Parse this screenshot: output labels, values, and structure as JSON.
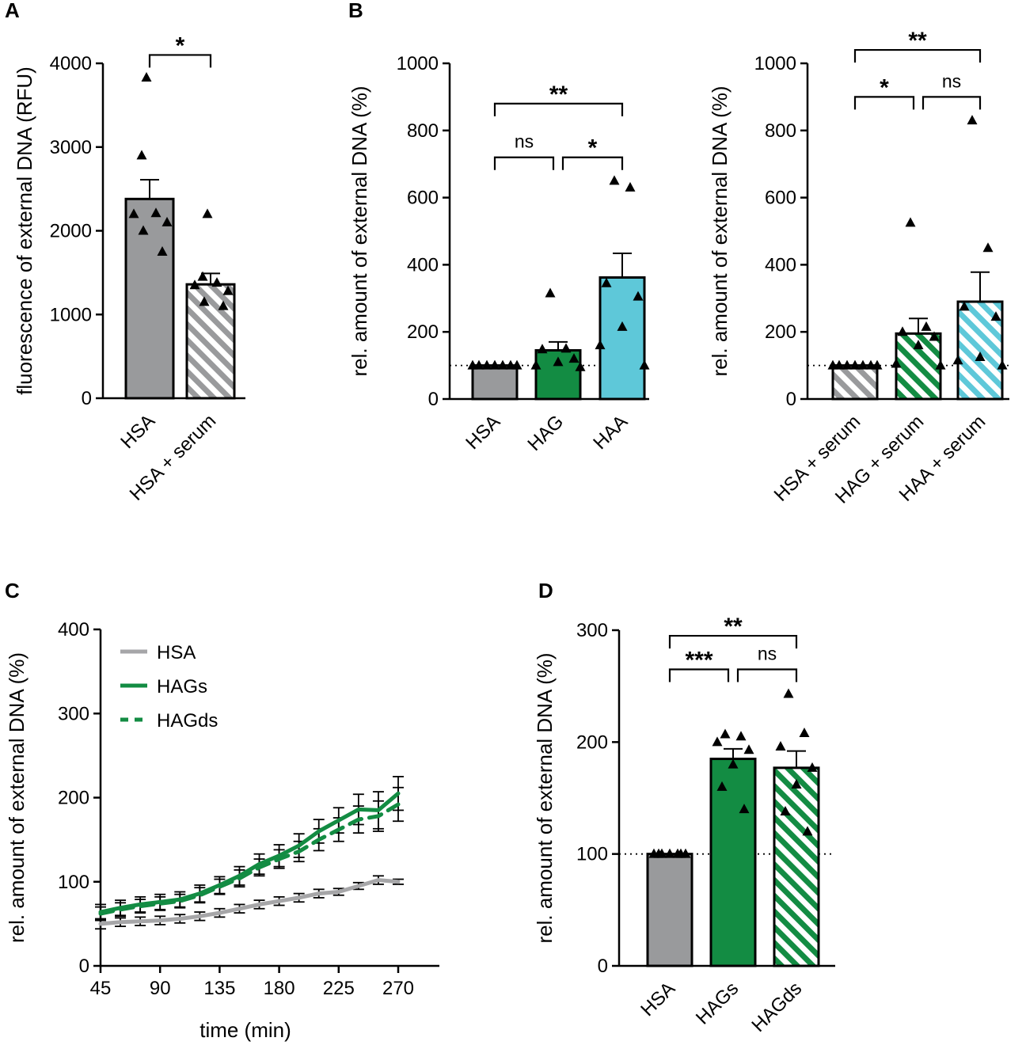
{
  "colors": {
    "hsa": "#999a9c",
    "hag": "#138c43",
    "haa": "#5ec8d9",
    "line_gray": "#a6a6a8",
    "line_green": "#138c43"
  },
  "panels": {
    "A": {
      "label": "A"
    },
    "B": {
      "label": "B"
    },
    "C": {
      "label": "C"
    },
    "D": {
      "label": "D"
    }
  },
  "chart_data": [
    {
      "id": "A",
      "type": "bar",
      "ylabel": "fluorescence of external DNA (RFU)",
      "ylim": [
        0,
        4000
      ],
      "yticks": [
        "0",
        "1000",
        "2000",
        "3000",
        "4000"
      ],
      "categories": [
        "HSA",
        "HSA + serum"
      ],
      "values": [
        2380,
        1360
      ],
      "errors": [
        230,
        130
      ],
      "fills": [
        "solid",
        "hatched"
      ],
      "points": [
        [
          3830,
          2900,
          2210,
          2200,
          2100,
          2000,
          1750
        ],
        [
          2200,
          1450,
          1380,
          1350,
          1280,
          1150,
          1100
        ]
      ],
      "brackets": [
        {
          "from": 0,
          "to": 1,
          "y": 4100,
          "text": "*"
        }
      ],
      "reference_line": null
    },
    {
      "id": "B1",
      "type": "bar",
      "ylabel": "rel. amount of external DNA (%)",
      "ylim": [
        0,
        1000
      ],
      "yticks": [
        "0",
        "200",
        "400",
        "600",
        "800",
        "1000"
      ],
      "categories": [
        "HSA",
        "HAG",
        "HAA"
      ],
      "values": [
        100,
        145,
        362
      ],
      "errors": [
        0,
        25,
        72
      ],
      "fills": [
        "solid",
        "solid",
        "solid"
      ],
      "points": [
        [
          100,
          100,
          100,
          100,
          100,
          100,
          100
        ],
        [
          315,
          150,
          148,
          120,
          110,
          100,
          95
        ],
        [
          650,
          630,
          345,
          305,
          215,
          160,
          100
        ]
      ],
      "brackets": [
        {
          "from": 0,
          "to": 1,
          "y": 720,
          "text": "ns"
        },
        {
          "from": 1,
          "to": 2,
          "y": 720,
          "text": "*"
        },
        {
          "from": 0,
          "to": 2,
          "y": 880,
          "text": "**"
        }
      ],
      "reference_line": 100
    },
    {
      "id": "B2",
      "type": "bar",
      "ylabel": "rel. amount of external DNA (%)",
      "ylim": [
        0,
        1000
      ],
      "yticks": [
        "0",
        "200",
        "400",
        "600",
        "800",
        "1000"
      ],
      "categories": [
        "HSA + serum",
        "HAG + serum",
        "HAA + serum"
      ],
      "values": [
        100,
        195,
        290
      ],
      "errors": [
        0,
        45,
        88
      ],
      "fills": [
        "hatched",
        "hatched",
        "hatched"
      ],
      "points": [
        [
          100,
          100,
          100,
          100,
          100,
          100,
          100
        ],
        [
          525,
          215,
          200,
          185,
          160,
          105,
          100
        ],
        [
          830,
          450,
          275,
          245,
          125,
          115,
          100
        ]
      ],
      "brackets": [
        {
          "from": 0,
          "to": 1,
          "y": 900,
          "text": "*"
        },
        {
          "from": 1,
          "to": 2,
          "y": 900,
          "text": "ns"
        },
        {
          "from": 0,
          "to": 2,
          "y": 1040,
          "text": "**"
        }
      ],
      "reference_line": 100
    },
    {
      "id": "C",
      "type": "line",
      "xlabel": "time (min)",
      "ylabel": "rel. amount of external DNA (%)",
      "xlim": [
        45,
        290
      ],
      "ylim": [
        0,
        400
      ],
      "xticks": [
        "45",
        "90",
        "135",
        "180",
        "225",
        "270"
      ],
      "yticks": [
        "0",
        "100",
        "200",
        "300",
        "400"
      ],
      "x": [
        45,
        60,
        75,
        90,
        105,
        120,
        135,
        150,
        165,
        180,
        195,
        210,
        225,
        240,
        255,
        270
      ],
      "series": [
        {
          "name": "HSA",
          "style": "solid",
          "values": [
            50,
            52,
            53,
            54,
            56,
            59,
            63,
            68,
            73,
            77,
            81,
            86,
            88,
            95,
            102,
            100
          ],
          "errors": [
            6,
            5,
            5,
            5,
            5,
            5,
            5,
            5,
            5,
            5,
            5,
            5,
            4,
            4,
            5,
            3
          ]
        },
        {
          "name": "HAGs",
          "style": "solid",
          "values": [
            64,
            69,
            73,
            76,
            79,
            86,
            96,
            107,
            121,
            131,
            143,
            160,
            173,
            186,
            185,
            205
          ],
          "errors": [
            9,
            9,
            9,
            9,
            9,
            10,
            10,
            11,
            12,
            13,
            14,
            14,
            15,
            18,
            22,
            20
          ]
        },
        {
          "name": "HAGds",
          "style": "dashed",
          "values": [
            62,
            67,
            71,
            74,
            77,
            84,
            94,
            104,
            117,
            127,
            136,
            150,
            162,
            174,
            178,
            192
          ],
          "errors": [
            8,
            8,
            8,
            8,
            8,
            9,
            9,
            10,
            10,
            11,
            12,
            13,
            14,
            16,
            18,
            20
          ]
        }
      ],
      "legend": {
        "position": "top-left",
        "entries": [
          "HSA",
          "HAGs",
          "HAGds"
        ]
      }
    },
    {
      "id": "D",
      "type": "bar",
      "ylabel": "rel. amount of external DNA (%)",
      "ylim": [
        0,
        300
      ],
      "yticks": [
        "0",
        "100",
        "200",
        "300"
      ],
      "categories": [
        "HSA",
        "HAGs",
        "HAGds"
      ],
      "values": [
        100,
        185,
        177
      ],
      "errors": [
        0,
        9,
        15
      ],
      "fills": [
        "solid",
        "solid",
        "hatched"
      ],
      "points": [
        [
          100,
          100,
          100,
          100,
          100,
          100,
          100
        ],
        [
          207,
          205,
          200,
          193,
          180,
          160,
          140
        ],
        [
          243,
          208,
          196,
          177,
          162,
          138,
          120
        ]
      ],
      "brackets": [
        {
          "from": 0,
          "to": 1,
          "y": 265,
          "text": "***"
        },
        {
          "from": 1,
          "to": 2,
          "y": 265,
          "text": "ns"
        },
        {
          "from": 0,
          "to": 2,
          "y": 295,
          "text": "**"
        }
      ],
      "reference_line": 100
    }
  ]
}
